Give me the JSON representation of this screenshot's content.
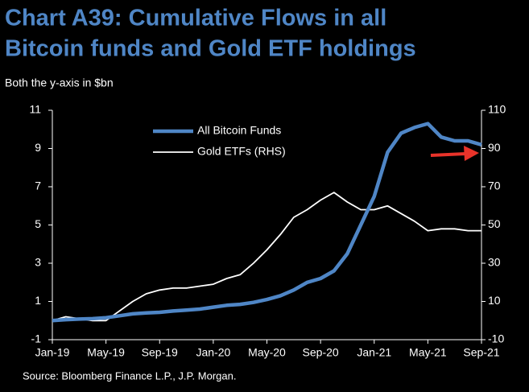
{
  "chart_data": {
    "type": "line",
    "title": [
      "Chart A39: Cumulative Flows in all",
      "Bitcoin funds and Gold ETF holdings"
    ],
    "subtitle": "Both the y-axis in $bn",
    "source": "Source: Bloomberg Finance L.P., J.P. Morgan.",
    "categories": [
      "Jan-19",
      null,
      null,
      null,
      "May-19",
      null,
      null,
      null,
      "Sep-19",
      null,
      null,
      null,
      "Jan-20",
      null,
      null,
      null,
      "May-20",
      null,
      null,
      null,
      "Sep-20",
      null,
      null,
      null,
      "Jan-21",
      null,
      null,
      null,
      "May-21",
      null,
      null,
      null,
      "Sep-21"
    ],
    "series": [
      {
        "name": "All Bitcoin Funds",
        "color": "#4f86c6",
        "values": [
          0,
          0.05,
          0.08,
          0.1,
          0.15,
          0.25,
          0.35,
          0.4,
          0.43,
          0.5,
          0.55,
          0.6,
          0.7,
          0.8,
          0.85,
          0.95,
          1.1,
          1.3,
          1.6,
          2.0,
          2.2,
          2.6,
          3.5,
          5.0,
          6.5,
          8.8,
          9.8,
          10.1,
          10.3,
          9.6,
          9.4,
          9.4,
          9.2
        ]
      },
      {
        "name": "Gold ETFs (RHS)",
        "color": "#ffffff",
        "axis": "y2",
        "values": [
          0,
          2,
          1,
          0,
          0,
          5,
          10,
          14,
          16,
          17,
          17,
          18,
          19,
          22,
          24,
          30,
          37,
          45,
          54,
          58,
          63,
          67,
          62,
          58,
          58,
          60,
          56,
          52,
          47,
          48,
          48,
          47,
          47
        ]
      }
    ],
    "ylim": [
      -1,
      11
    ],
    "yticks": [
      -1,
      1,
      3,
      5,
      7,
      9,
      11
    ],
    "y2lim": [
      -10,
      110
    ],
    "y2ticks": [
      -10,
      10,
      30,
      50,
      70,
      90,
      110
    ],
    "legend": "top"
  }
}
